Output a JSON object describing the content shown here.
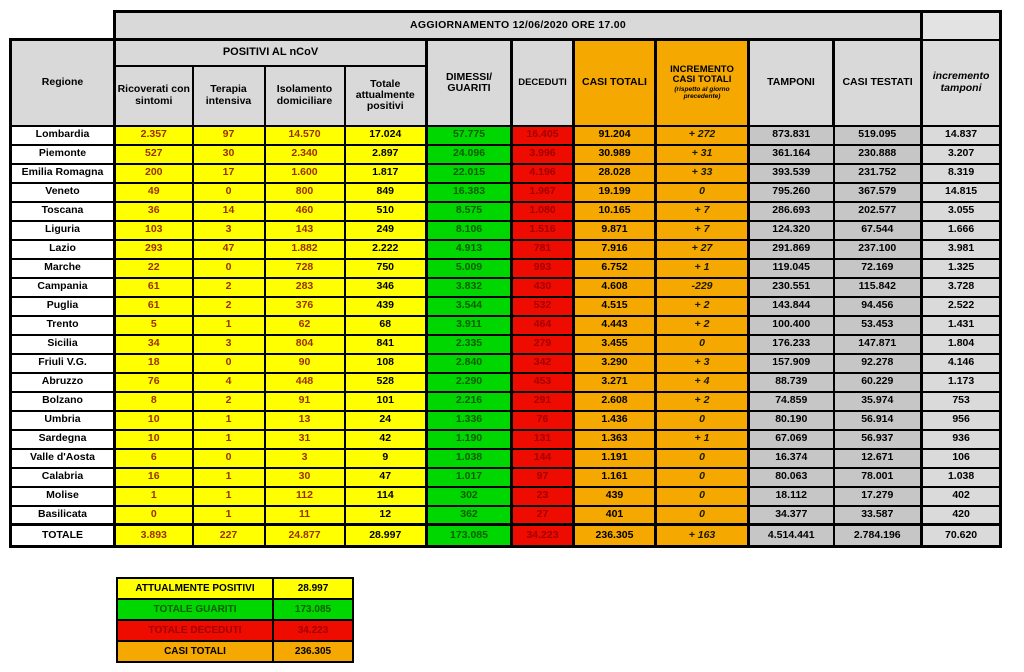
{
  "banner": {
    "title": "AGGIORNAMENTO 12/06/2020 ORE 17.00"
  },
  "colors": {
    "yellow": "#ffff00",
    "green": "#00d600",
    "red": "#ee0b00",
    "orange": "#f5a800",
    "grey": "#c6c6c6",
    "light_grey": "#dadada",
    "header_grey": "#d9d9d9",
    "yellow_text": "#9a3000",
    "green_text": "#0d5c00",
    "red_text": "#a30000"
  },
  "table": {
    "header": {
      "regione": "Regione",
      "positivi_group": "POSITIVI AL nCoV",
      "ricoverati": "Ricoverati con sintomi",
      "terapia": "Terapia intensiva",
      "isolamento": "Isolamento domiciliare",
      "totale_positivi": "Totale attualmente positivi",
      "dimessi": "DIMESSI/ GUARITI",
      "deceduti": "DECEDUTI",
      "casi_totali": "CASI TOTALI",
      "incremento": "INCREMENTO CASI TOTALI",
      "incremento_note": "(rispetto al giorno precedente)",
      "tamponi": "TAMPONI",
      "casi_testati": "CASI TESTATI",
      "incremento_tamponi": "incremento tamponi"
    },
    "rows": [
      {
        "region": "Lombardia",
        "values": [
          "2.357",
          "97",
          "14.570",
          "17.024",
          "57.775",
          "16.405",
          "91.204",
          "+ 272",
          "873.831",
          "519.095",
          "14.837"
        ]
      },
      {
        "region": "Piemonte",
        "values": [
          "527",
          "30",
          "2.340",
          "2.897",
          "24.096",
          "3.996",
          "30.989",
          "+ 31",
          "361.164",
          "230.888",
          "3.207"
        ]
      },
      {
        "region": "Emilia Romagna",
        "values": [
          "200",
          "17",
          "1.600",
          "1.817",
          "22.015",
          "4.196",
          "28.028",
          "+ 33",
          "393.539",
          "231.752",
          "8.319"
        ]
      },
      {
        "region": "Veneto",
        "values": [
          "49",
          "0",
          "800",
          "849",
          "16.383",
          "1.967",
          "19.199",
          "0",
          "795.260",
          "367.579",
          "14.815"
        ]
      },
      {
        "region": "Toscana",
        "values": [
          "36",
          "14",
          "460",
          "510",
          "8.575",
          "1.080",
          "10.165",
          "+ 7",
          "286.693",
          "202.577",
          "3.055"
        ]
      },
      {
        "region": "Liguria",
        "values": [
          "103",
          "3",
          "143",
          "249",
          "8.106",
          "1.516",
          "9.871",
          "+ 7",
          "124.320",
          "67.544",
          "1.666"
        ]
      },
      {
        "region": "Lazio",
        "values": [
          "293",
          "47",
          "1.882",
          "2.222",
          "4.913",
          "781",
          "7.916",
          "+ 27",
          "291.869",
          "237.100",
          "3.981"
        ]
      },
      {
        "region": "Marche",
        "values": [
          "22",
          "0",
          "728",
          "750",
          "5.009",
          "993",
          "6.752",
          "+ 1",
          "119.045",
          "72.169",
          "1.325"
        ]
      },
      {
        "region": "Campania",
        "values": [
          "61",
          "2",
          "283",
          "346",
          "3.832",
          "430",
          "4.608",
          "-229",
          "230.551",
          "115.842",
          "3.728"
        ]
      },
      {
        "region": "Puglia",
        "values": [
          "61",
          "2",
          "376",
          "439",
          "3.544",
          "532",
          "4.515",
          "+ 2",
          "143.844",
          "94.456",
          "2.522"
        ]
      },
      {
        "region": "Trento",
        "values": [
          "5",
          "1",
          "62",
          "68",
          "3.911",
          "464",
          "4.443",
          "+ 2",
          "100.400",
          "53.453",
          "1.431"
        ]
      },
      {
        "region": "Sicilia",
        "values": [
          "34",
          "3",
          "804",
          "841",
          "2.335",
          "279",
          "3.455",
          "0",
          "176.233",
          "147.871",
          "1.804"
        ]
      },
      {
        "region": "Friuli V.G.",
        "values": [
          "18",
          "0",
          "90",
          "108",
          "2.840",
          "342",
          "3.290",
          "+ 3",
          "157.909",
          "92.278",
          "4.146"
        ]
      },
      {
        "region": "Abruzzo",
        "values": [
          "76",
          "4",
          "448",
          "528",
          "2.290",
          "453",
          "3.271",
          "+ 4",
          "88.739",
          "60.229",
          "1.173"
        ]
      },
      {
        "region": "Bolzano",
        "values": [
          "8",
          "2",
          "91",
          "101",
          "2.216",
          "291",
          "2.608",
          "+ 2",
          "74.859",
          "35.974",
          "753"
        ]
      },
      {
        "region": "Umbria",
        "values": [
          "10",
          "1",
          "13",
          "24",
          "1.336",
          "76",
          "1.436",
          "0",
          "80.190",
          "56.914",
          "956"
        ]
      },
      {
        "region": "Sardegna",
        "values": [
          "10",
          "1",
          "31",
          "42",
          "1.190",
          "131",
          "1.363",
          "+ 1",
          "67.069",
          "56.937",
          "936"
        ]
      },
      {
        "region": "Valle d'Aosta",
        "values": [
          "6",
          "0",
          "3",
          "9",
          "1.038",
          "144",
          "1.191",
          "0",
          "16.374",
          "12.671",
          "106"
        ]
      },
      {
        "region": "Calabria",
        "values": [
          "16",
          "1",
          "30",
          "47",
          "1.017",
          "97",
          "1.161",
          "0",
          "80.063",
          "78.001",
          "1.038"
        ]
      },
      {
        "region": "Molise",
        "values": [
          "1",
          "1",
          "112",
          "114",
          "302",
          "23",
          "439",
          "0",
          "18.112",
          "17.279",
          "402"
        ]
      },
      {
        "region": "Basilicata",
        "values": [
          "0",
          "1",
          "11",
          "12",
          "362",
          "27",
          "401",
          "0",
          "34.377",
          "33.587",
          "420"
        ]
      }
    ],
    "total": {
      "region": "TOTALE",
      "values": [
        "3.893",
        "227",
        "24.877",
        "28.997",
        "173.085",
        "34.223",
        "236.305",
        "+ 163",
        "4.514.441",
        "2.784.196",
        "70.620"
      ]
    }
  },
  "summary": {
    "rows": [
      {
        "label": "ATTUALMENTE POSITIVI",
        "value": "28.997",
        "style": "c-ytot"
      },
      {
        "label": "TOTALE GUARITI",
        "value": "173.085",
        "style": "c-grn"
      },
      {
        "label": "TOTALE DECEDUTI",
        "value": "34.223",
        "style": "c-red"
      },
      {
        "label": "CASI TOTALI",
        "value": "236.305",
        "style": "c-org"
      }
    ]
  }
}
